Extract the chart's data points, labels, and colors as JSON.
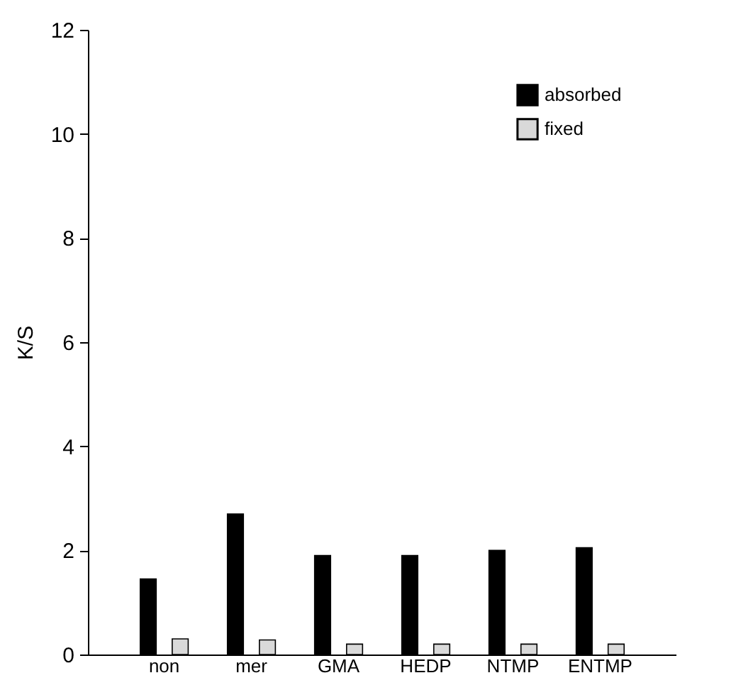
{
  "chart_data": {
    "type": "bar",
    "ylabel": "K/S",
    "categories": [
      "non",
      "mer",
      "GMA",
      "HEDP",
      "NTMP",
      "ENTMP"
    ],
    "series": [
      {
        "name": "absorbed",
        "color": "#000000",
        "values": [
          1.45,
          2.7,
          1.9,
          1.9,
          2.0,
          2.05
        ]
      },
      {
        "name": "fixed",
        "color": "#d9d9d9",
        "values": [
          0.3,
          0.28,
          0.2,
          0.2,
          0.2,
          0.2
        ]
      }
    ],
    "ylim": [
      0,
      12
    ],
    "yticks": [
      0,
      2,
      4,
      6,
      8,
      10,
      12
    ],
    "grid": false,
    "legend": "top right"
  }
}
